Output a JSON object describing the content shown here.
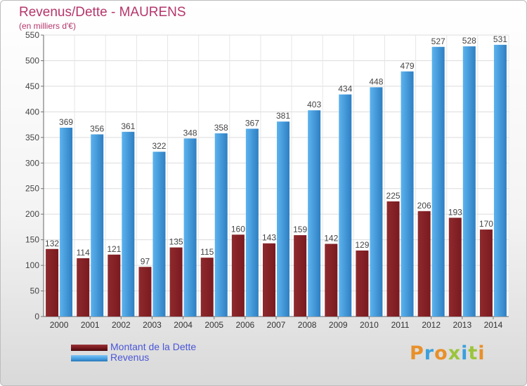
{
  "chart_data": {
    "type": "bar",
    "title": "Revenus/Dette - MAURENS",
    "subtitle": "(en milliers d'€)",
    "categories": [
      "2000",
      "2001",
      "2002",
      "2003",
      "2004",
      "2005",
      "2006",
      "2007",
      "2008",
      "2009",
      "2010",
      "2011",
      "2012",
      "2013",
      "2014"
    ],
    "series": [
      {
        "name": "Montant de la Dette",
        "color": "#7a1a1f",
        "values": [
          132,
          114,
          121,
          97,
          135,
          115,
          160,
          143,
          159,
          142,
          129,
          225,
          206,
          193,
          170
        ]
      },
      {
        "name": "Revenus",
        "color": "#4aa3e4",
        "values": [
          369,
          356,
          361,
          322,
          348,
          358,
          367,
          381,
          403,
          434,
          448,
          479,
          527,
          528,
          531
        ]
      }
    ],
    "ylim": [
      0,
      550
    ],
    "yticks": [
      0,
      50,
      100,
      150,
      200,
      250,
      300,
      350,
      400,
      450,
      500,
      550
    ],
    "grid": true,
    "legend_position": "bottom-left"
  },
  "logo": {
    "text": "Proxiti",
    "colors": [
      "#e8902a",
      "#3aa0dc",
      "#e8902a",
      "#9bc43c",
      "#3aa0dc",
      "#9bc43c",
      "#e8902a"
    ]
  }
}
